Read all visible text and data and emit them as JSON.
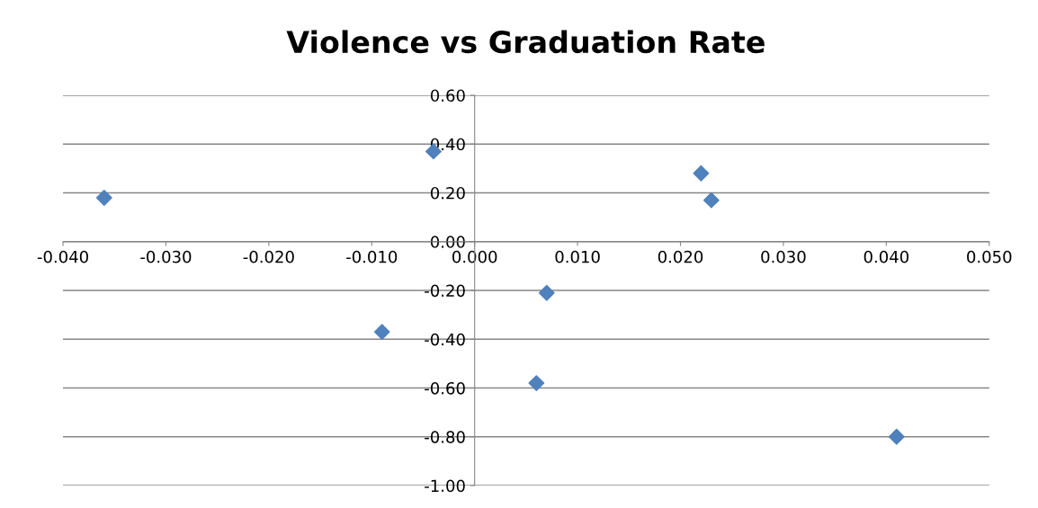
{
  "chart_data": {
    "type": "scatter",
    "title": "Violence vs Graduation Rate",
    "x": [
      -0.036,
      -0.004,
      0.022,
      0.023,
      0.007,
      -0.009,
      0.006,
      0.041
    ],
    "values": [
      0.18,
      0.37,
      0.28,
      0.17,
      -0.21,
      -0.37,
      -0.58,
      -0.8
    ],
    "color": "#4f81bd",
    "marker": "diamond",
    "grid": "y",
    "legend": false,
    "xlim": [
      -0.04,
      0.05
    ],
    "xticks": [
      {
        "value": -0.04,
        "label": "-0.040"
      },
      {
        "value": -0.03,
        "label": "-0.030"
      },
      {
        "value": -0.02,
        "label": "-0.020"
      },
      {
        "value": -0.01,
        "label": "-0.010"
      },
      {
        "value": 0,
        "label": "0.000"
      },
      {
        "value": 0.01,
        "label": "0.010"
      },
      {
        "value": 0.02,
        "label": "0.020"
      },
      {
        "value": 0.03,
        "label": "0.030"
      },
      {
        "value": 0.04,
        "label": "0.040"
      },
      {
        "value": 0.05,
        "label": "0.050"
      }
    ],
    "ylim": [
      -1.0,
      0.6
    ],
    "yticks": [
      {
        "value": -1.0,
        "label": "-1.00"
      },
      {
        "value": -0.8,
        "label": "-0.80"
      },
      {
        "value": -0.6,
        "label": "-0.60"
      },
      {
        "value": -0.4,
        "label": "-0.40"
      },
      {
        "value": -0.2,
        "label": "-0.20"
      },
      {
        "value": 0,
        "label": "0.00"
      },
      {
        "value": 0.2,
        "label": "0.20"
      },
      {
        "value": 0.4,
        "label": "0.40"
      },
      {
        "value": 0.6,
        "label": "0.60"
      }
    ]
  }
}
